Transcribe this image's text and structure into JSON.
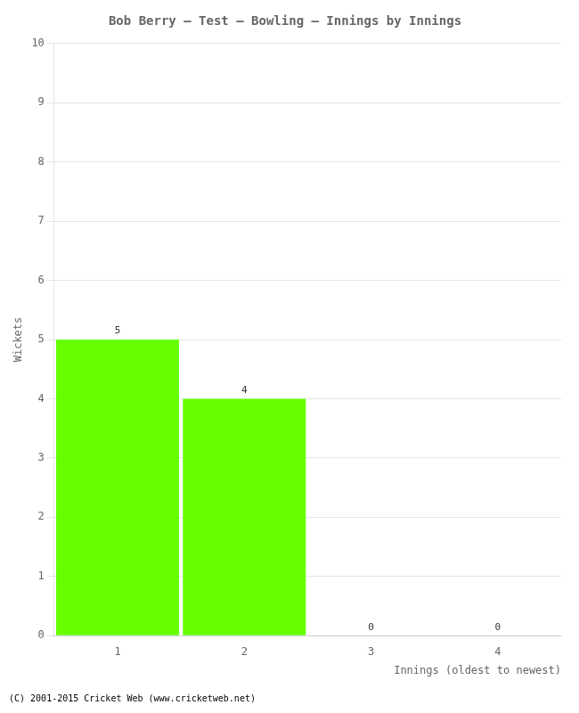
{
  "chart_data": {
    "type": "bar",
    "title": "Bob Berry – Test – Bowling – Innings by Innings",
    "xlabel": "Innings (oldest to newest)",
    "ylabel": "Wickets",
    "categories": [
      1,
      2,
      3,
      4
    ],
    "values": [
      5,
      4,
      0,
      0
    ],
    "color": "#66ff00",
    "ylim": [
      0,
      10
    ],
    "yticks": [
      0,
      1,
      2,
      3,
      4,
      5,
      6,
      7,
      8,
      9,
      10
    ],
    "grid": true,
    "data_labels": true,
    "annotations": [
      "(C) 2001-2015 Cricket Web (www.cricketweb.net)"
    ]
  }
}
